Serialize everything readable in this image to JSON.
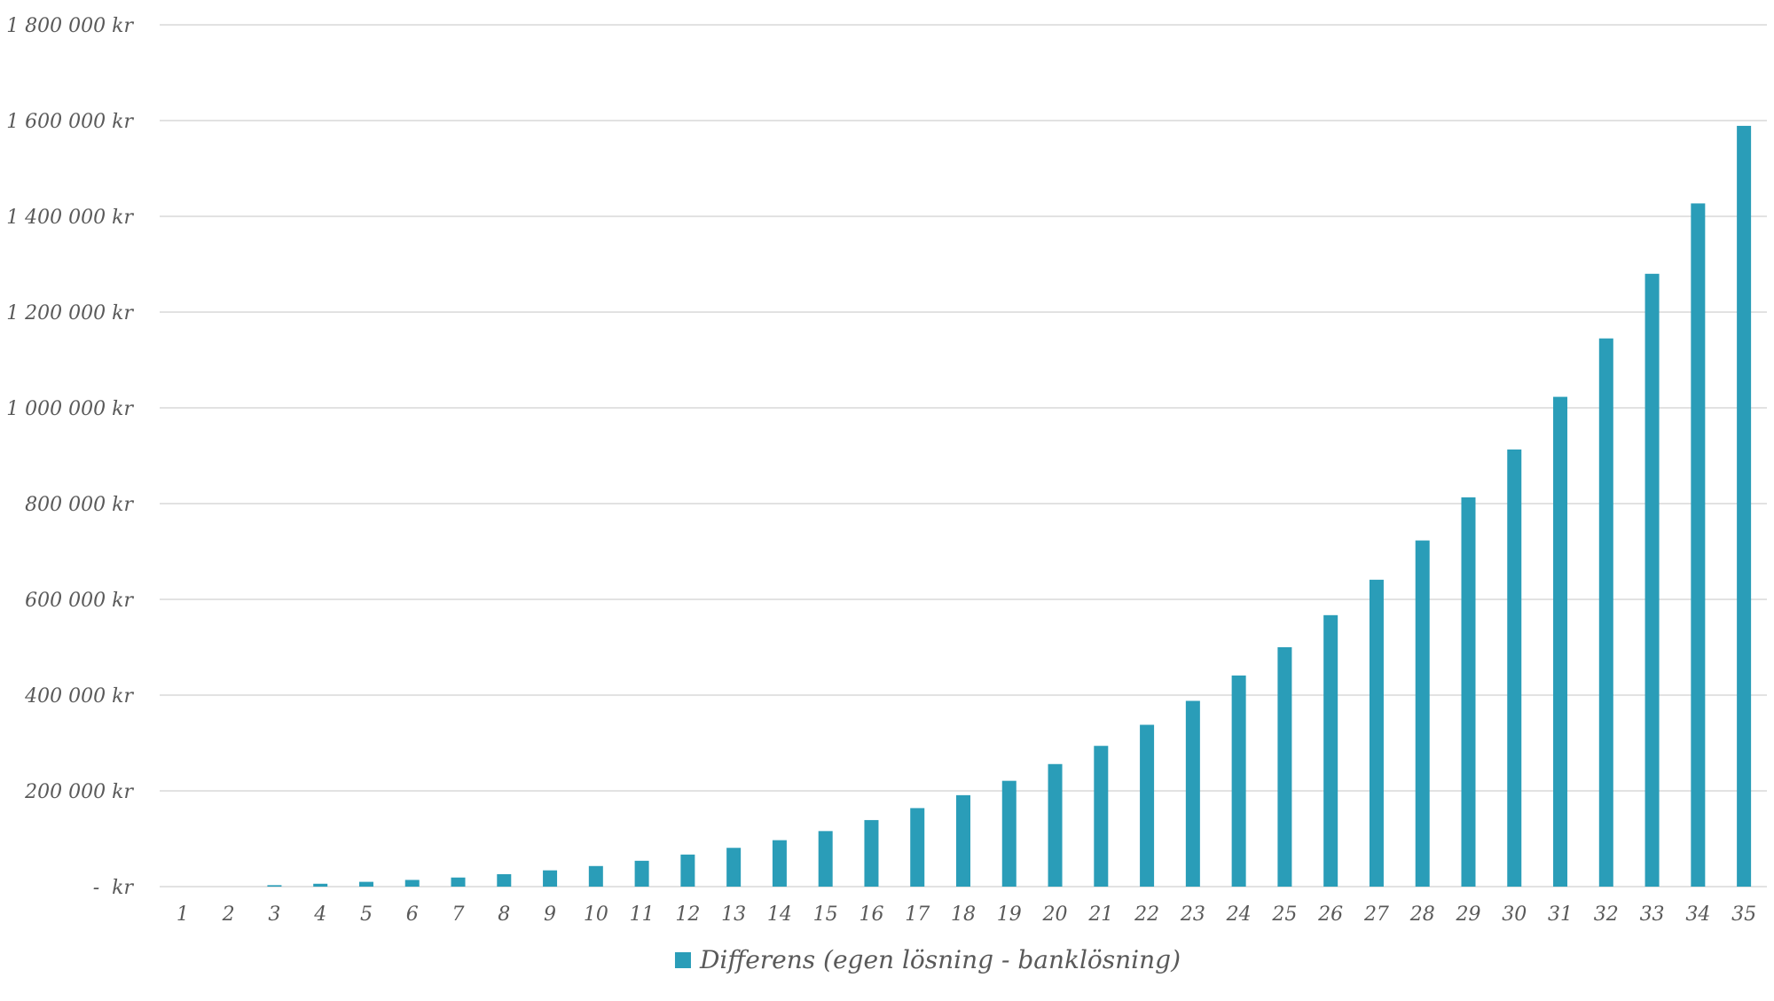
{
  "chart_data": {
    "type": "bar",
    "series": [
      {
        "name": "Differens (egen lösning - banklösning)",
        "color": "#2A9DB8",
        "values": [
          0,
          0,
          3000,
          6000,
          10000,
          14000,
          19000,
          26000,
          34000,
          43000,
          54000,
          67000,
          81000,
          97000,
          116000,
          139000,
          164000,
          191000,
          221000,
          256000,
          294000,
          338000,
          388000,
          441000,
          500000,
          567000,
          641000,
          723000,
          813000,
          913000,
          1023000,
          1145000,
          1280000,
          1427000,
          1589000
        ]
      }
    ],
    "categories": [
      "1",
      "2",
      "3",
      "4",
      "5",
      "6",
      "7",
      "8",
      "9",
      "10",
      "11",
      "12",
      "13",
      "14",
      "15",
      "16",
      "17",
      "18",
      "19",
      "20",
      "21",
      "22",
      "23",
      "24",
      "25",
      "26",
      "27",
      "28",
      "29",
      "30",
      "31",
      "32",
      "33",
      "34",
      "35"
    ],
    "y_tick_labels": [
      "-  kr",
      "200 000 kr",
      "400 000 kr",
      "600 000 kr",
      "800 000 kr",
      "1 000 000 kr",
      "1 200 000 kr",
      "1 400 000 kr",
      "1 600 000 kr",
      "1 800 000 kr"
    ],
    "y_ticks": [
      0,
      200000,
      400000,
      600000,
      800000,
      1000000,
      1200000,
      1400000,
      1600000,
      1800000
    ],
    "ylim": [
      0,
      1800000
    ],
    "grid": true,
    "legend_position": "bottom",
    "gridline_color": "#D9D9D9"
  }
}
